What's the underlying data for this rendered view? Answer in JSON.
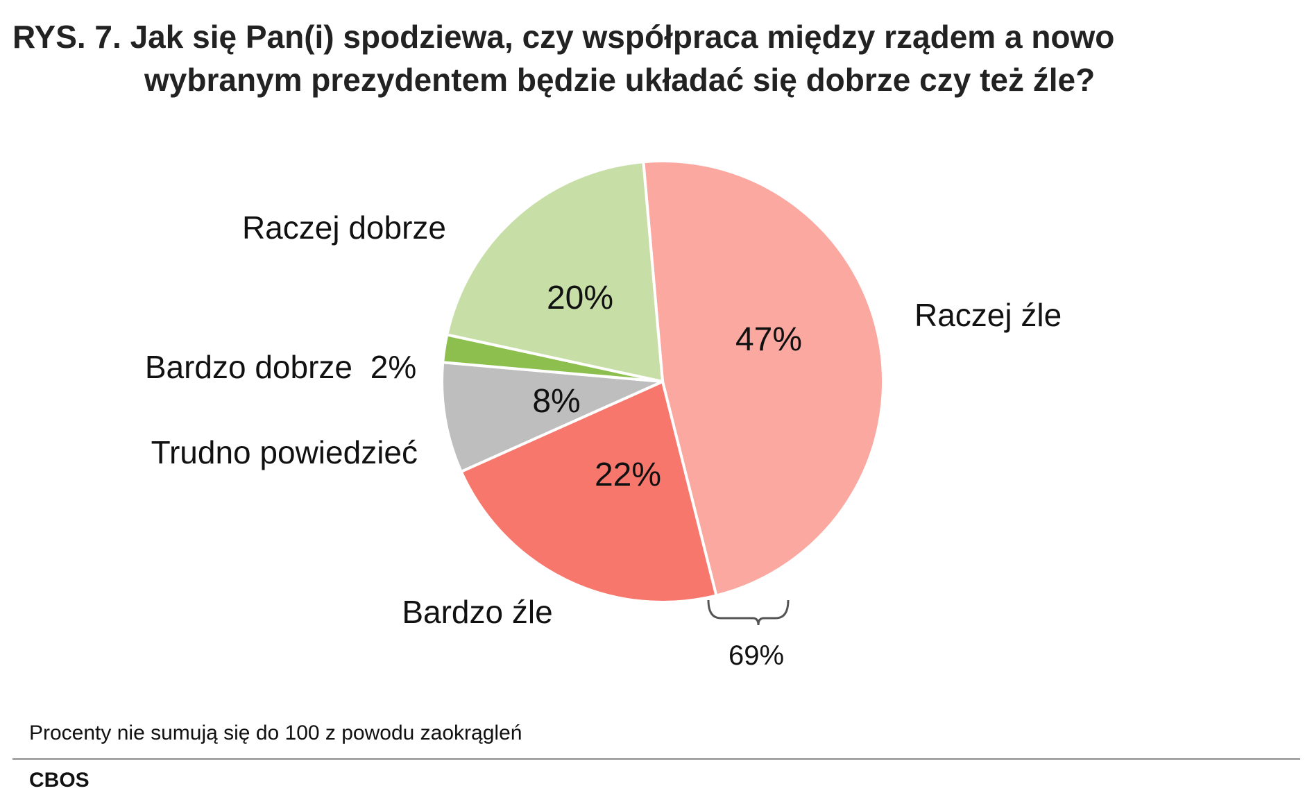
{
  "title": {
    "line1": "RYS. 7. Jak się Pan(i) spodziewa, czy współpraca między rządem a nowo",
    "line2": "wybranym prezydentem będzie układać się dobrze czy też źle?"
  },
  "chart_data": {
    "type": "pie",
    "slices": [
      {
        "label": "Raczej źle",
        "value": 47,
        "value_label": "47%",
        "color": "#FAA8A0"
      },
      {
        "label": "Bardzo źle",
        "value": 22,
        "value_label": "22%",
        "color": "#F8776D"
      },
      {
        "label": "Trudno powiedzieć",
        "value": 8,
        "value_label": "8%",
        "color": "#BEBEBE"
      },
      {
        "label": "Bardzo dobrze",
        "value": 2,
        "value_label": "2%",
        "color": "#8DBF4F"
      },
      {
        "label": "Raczej dobrze",
        "value": 20,
        "value_label": "20%",
        "color": "#C7DFA7"
      }
    ],
    "bracket": {
      "groups": [
        "Raczej źle",
        "Bardzo źle"
      ],
      "label": "69%"
    }
  },
  "footer": {
    "note": "Procenty nie sumują się do 100 z powodu zaokrągleń",
    "source": "CBOS"
  }
}
